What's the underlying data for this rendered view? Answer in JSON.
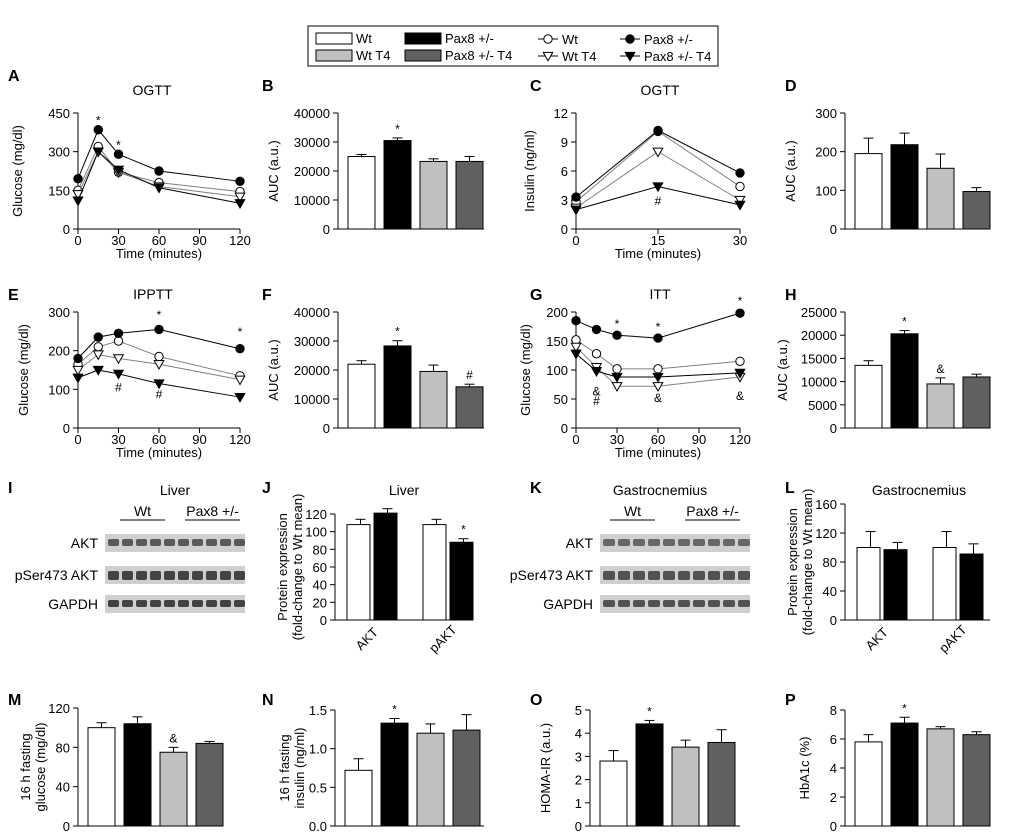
{
  "colors": {
    "wt": "#ffffff",
    "pax": "#000000",
    "wt_t4": "#c0c0c0",
    "pax_t4": "#606060",
    "stroke": "#000000",
    "open_marker": "#ffffff",
    "grey_line": "#808080"
  },
  "legend": {
    "bar_items": [
      {
        "label": "Wt",
        "color": "#ffffff"
      },
      {
        "label": "Pax8 +/-",
        "color": "#000000"
      },
      {
        "label": "Wt T4",
        "color": "#c0c0c0"
      },
      {
        "label": "Pax8 +/- T4",
        "color": "#606060"
      }
    ],
    "line_items": [
      {
        "label": "Wt",
        "marker": "open-circle"
      },
      {
        "label": "Pax8 +/-",
        "marker": "filled-circle"
      },
      {
        "label": "Wt T4",
        "marker": "open-triangle"
      },
      {
        "label": "Pax8 +/- T4",
        "marker": "filled-triangle"
      }
    ]
  },
  "chart_data": [
    {
      "panel": "A",
      "type": "line",
      "title": "OGTT",
      "xlabel": "Time (minutes)",
      "ylabel": "Glucose (mg/dl)",
      "x": [
        0,
        15,
        30,
        60,
        120
      ],
      "xlim": [
        0,
        120
      ],
      "ylim": [
        0,
        450
      ],
      "yticks": [
        "0",
        "150",
        "300",
        "450"
      ],
      "xticks": [
        "0",
        "30",
        "60",
        "90",
        "120"
      ],
      "series": [
        {
          "name": "Wt",
          "values": [
            150,
            320,
            220,
            180,
            145
          ]
        },
        {
          "name": "Pax8 +/-",
          "values": [
            195,
            385,
            290,
            225,
            185
          ]
        },
        {
          "name": "Wt T4",
          "values": [
            135,
            300,
            220,
            165,
            125
          ]
        },
        {
          "name": "Pax8 +/- T4",
          "values": [
            110,
            300,
            230,
            160,
            100
          ]
        }
      ],
      "annotations": [
        {
          "x": 15,
          "y": 405,
          "text": "*"
        },
        {
          "x": 30,
          "y": 310,
          "text": "*"
        }
      ]
    },
    {
      "panel": "B",
      "type": "bar",
      "ylabel": "AUC (a.u.)",
      "categories": [
        "Wt",
        "Pax8 +/-",
        "Wt T4",
        "Pax8 +/- T4"
      ],
      "values": [
        25000,
        30500,
        23300,
        23300
      ],
      "errors": [
        700,
        900,
        900,
        1700
      ],
      "ylim": [
        0,
        40000
      ],
      "yticks": [
        "0",
        "10000",
        "20000",
        "30000",
        "40000"
      ],
      "annotations": [
        {
          "index": 1,
          "text": "*"
        }
      ]
    },
    {
      "panel": "C",
      "type": "line",
      "title": "OGTT",
      "xlabel": "Time (minutes)",
      "ylabel": "Insulin (ng/ml)",
      "x": [
        0,
        15,
        30
      ],
      "xlim": [
        0,
        30
      ],
      "ylim": [
        0,
        12
      ],
      "yticks": [
        "0",
        "3",
        "6",
        "9",
        "12"
      ],
      "xticks": [
        "0",
        "15",
        "30"
      ],
      "series": [
        {
          "name": "Wt",
          "values": [
            2.8,
            10.1,
            4.4
          ]
        },
        {
          "name": "Pax8 +/-",
          "values": [
            3.3,
            10.2,
            5.8
          ]
        },
        {
          "name": "Wt T4",
          "values": [
            2.2,
            8.0,
            3.0
          ]
        },
        {
          "name": "Pax8 +/- T4",
          "values": [
            2.0,
            4.4,
            2.5
          ]
        }
      ],
      "annotations": [
        {
          "x": 15,
          "y": 2.5,
          "text": "#"
        }
      ]
    },
    {
      "panel": "D",
      "type": "bar",
      "ylabel": "AUC (a.u.)",
      "categories": [
        "Wt",
        "Pax8 +/-",
        "Wt T4",
        "Pax8 +/- T4"
      ],
      "values": [
        195,
        218,
        157,
        97
      ],
      "errors": [
        40,
        30,
        37,
        10
      ],
      "ylim": [
        0,
        300
      ],
      "yticks": [
        "0",
        "100",
        "200",
        "300"
      ]
    },
    {
      "panel": "E",
      "type": "line",
      "title": "IPPTT",
      "xlabel": "Time (minutes)",
      "ylabel": "Glucose (mg/dl)",
      "x": [
        0,
        15,
        30,
        60,
        120
      ],
      "xlim": [
        0,
        120
      ],
      "ylim": [
        0,
        300
      ],
      "yticks": [
        "0",
        "100",
        "200",
        "300"
      ],
      "xticks": [
        "0",
        "30",
        "60",
        "90",
        "120"
      ],
      "series": [
        {
          "name": "Wt",
          "values": [
            165,
            210,
            225,
            185,
            135
          ]
        },
        {
          "name": "Pax8 +/-",
          "values": [
            180,
            235,
            245,
            255,
            205
          ]
        },
        {
          "name": "Wt T4",
          "values": [
            150,
            190,
            180,
            165,
            125
          ]
        },
        {
          "name": "Pax8 +/- T4",
          "values": [
            130,
            150,
            140,
            115,
            80
          ]
        }
      ],
      "annotations": [
        {
          "x": 60,
          "y": 282,
          "text": "*"
        },
        {
          "x": 120,
          "y": 238,
          "text": "*"
        },
        {
          "x": 30,
          "y": 95,
          "text": "#"
        },
        {
          "x": 60,
          "y": 76,
          "text": "#"
        }
      ]
    },
    {
      "panel": "F",
      "type": "bar",
      "ylabel": "AUC (a.u.)",
      "categories": [
        "Wt",
        "Pax8 +/-",
        "Wt T4",
        "Pax8 +/- T4"
      ],
      "values": [
        22000,
        28300,
        19500,
        14200
      ],
      "errors": [
        1200,
        1800,
        2200,
        900
      ],
      "ylim": [
        0,
        40000
      ],
      "yticks": [
        "0",
        "10000",
        "20000",
        "30000",
        "40000"
      ],
      "annotations": [
        {
          "index": 1,
          "text": "*"
        },
        {
          "index": 3,
          "text": "#"
        }
      ]
    },
    {
      "panel": "G",
      "type": "line",
      "title": "ITT",
      "xlabel": "Time (minutes)",
      "ylabel": "Glucose (mg/dl)",
      "x": [
        0,
        15,
        30,
        60,
        120
      ],
      "xlim": [
        0,
        120
      ],
      "ylim": [
        0,
        200
      ],
      "yticks": [
        "0",
        "50",
        "100",
        "150",
        "200"
      ],
      "xticks": [
        "0",
        "30",
        "60",
        "90",
        "120"
      ],
      "series": [
        {
          "name": "Wt",
          "values": [
            152,
            128,
            102,
            102,
            115
          ]
        },
        {
          "name": "Pax8 +/-",
          "values": [
            185,
            170,
            160,
            155,
            198
          ]
        },
        {
          "name": "Wt T4",
          "values": [
            140,
            105,
            72,
            72,
            88
          ]
        },
        {
          "name": "Pax8 +/- T4",
          "values": [
            128,
            98,
            88,
            88,
            95
          ]
        }
      ],
      "annotations": [
        {
          "x": 30,
          "y": 172,
          "text": "*"
        },
        {
          "x": 60,
          "y": 167,
          "text": "*"
        },
        {
          "x": 120,
          "y": 212,
          "text": "*"
        },
        {
          "x": 15,
          "y": 56,
          "text": "&"
        },
        {
          "x": 15,
          "y": 40,
          "text": "#"
        },
        {
          "x": 60,
          "y": 45,
          "text": "&"
        },
        {
          "x": 120,
          "y": 48,
          "text": "&"
        }
      ]
    },
    {
      "panel": "H",
      "type": "bar",
      "ylabel": "AUC (a.u.)",
      "categories": [
        "Wt",
        "Pax8 +/-",
        "Wt T4",
        "Pax8 +/- T4"
      ],
      "values": [
        13500,
        20300,
        9500,
        11000
      ],
      "errors": [
        1000,
        700,
        1300,
        600
      ],
      "ylim": [
        0,
        25000
      ],
      "yticks": [
        "0",
        "5000",
        "10000",
        "15000",
        "20000",
        "25000"
      ],
      "annotations": [
        {
          "index": 1,
          "text": "*"
        },
        {
          "index": 2,
          "text": "&"
        }
      ]
    },
    {
      "panel": "J",
      "type": "bar",
      "title": "Liver",
      "ylabel": "Protein expression (fold-change to Wt mean)",
      "categories": [
        "AKT",
        "pAKT"
      ],
      "series": [
        {
          "name": "Wt",
          "values": [
            108,
            108
          ]
        },
        {
          "name": "Pax8 +/-",
          "values": [
            121,
            88
          ]
        }
      ],
      "errors": [
        [
          6,
          6
        ],
        [
          5,
          4
        ]
      ],
      "ylim": [
        0,
        120
      ],
      "yticks": [
        "0",
        "20",
        "40",
        "60",
        "80",
        "100",
        "120"
      ],
      "annotations": [
        {
          "group": 1,
          "series": 1,
          "text": "*"
        }
      ]
    },
    {
      "panel": "L",
      "type": "bar",
      "title": "Gastrocnemius",
      "ylabel": "Protein expression (fold-change to Wt mean)",
      "categories": [
        "AKT",
        "pAKT"
      ],
      "series": [
        {
          "name": "Wt",
          "values": [
            100,
            100
          ]
        },
        {
          "name": "Pax8 +/-",
          "values": [
            97,
            91
          ]
        }
      ],
      "errors": [
        [
          22,
          22
        ],
        [
          10,
          14
        ]
      ],
      "ylim": [
        0,
        160
      ],
      "yticks": [
        "0",
        "40",
        "80",
        "120",
        "160"
      ]
    },
    {
      "panel": "M",
      "type": "bar",
      "ylabel": "16 h fasting glucose (mg/dl)",
      "categories": [
        "Wt",
        "Pax8 +/-",
        "Wt T4",
        "Pax8 +/- T4"
      ],
      "values": [
        100,
        104,
        75,
        84
      ],
      "errors": [
        5,
        7,
        5,
        2
      ],
      "ylim": [
        0,
        120
      ],
      "yticks": [
        "0",
        "40",
        "80",
        "120"
      ],
      "annotations": [
        {
          "index": 2,
          "text": "&"
        }
      ]
    },
    {
      "panel": "N",
      "type": "bar",
      "ylabel": "16 h fasting insulin (ng/ml)",
      "categories": [
        "Wt",
        "Pax8 +/-",
        "Wt T4",
        "Pax8 +/- T4"
      ],
      "values": [
        0.72,
        1.33,
        1.2,
        1.24
      ],
      "errors": [
        0.15,
        0.06,
        0.12,
        0.2
      ],
      "ylim": [
        0,
        1.5
      ],
      "yticks": [
        "0.0",
        "0.5",
        "1.0",
        "1.5"
      ],
      "annotations": [
        {
          "index": 1,
          "text": "*"
        }
      ]
    },
    {
      "panel": "O",
      "type": "bar",
      "ylabel": "HOMA-IR (a.u.)",
      "categories": [
        "Wt",
        "Pax8 +/-",
        "Wt T4",
        "Pax8 +/- T4"
      ],
      "values": [
        2.8,
        4.4,
        3.4,
        3.6
      ],
      "errors": [
        0.45,
        0.15,
        0.3,
        0.55
      ],
      "ylim": [
        0,
        5
      ],
      "yticks": [
        "0",
        "1",
        "2",
        "3",
        "4",
        "5"
      ],
      "annotations": [
        {
          "index": 1,
          "text": "*"
        }
      ]
    },
    {
      "panel": "P",
      "type": "bar",
      "ylabel": "HbA1c (%)",
      "categories": [
        "Wt",
        "Pax8 +/-",
        "Wt T4",
        "Pax8 +/- T4"
      ],
      "values": [
        5.8,
        7.1,
        6.7,
        6.3
      ],
      "errors": [
        0.5,
        0.4,
        0.15,
        0.2
      ],
      "ylim": [
        0,
        8
      ],
      "yticks": [
        "0",
        "2",
        "4",
        "6",
        "8"
      ],
      "annotations": [
        {
          "index": 1,
          "text": "*"
        }
      ]
    }
  ],
  "blots": [
    {
      "panel": "I",
      "title": "Liver",
      "groups": [
        "Wt",
        "Pax8 +/-"
      ],
      "rows": [
        "AKT",
        "pSer473 AKT",
        "GAPDH"
      ]
    },
    {
      "panel": "K",
      "title": "Gastrocnemius",
      "groups": [
        "Wt",
        "Pax8 +/-"
      ],
      "rows": [
        "AKT",
        "pSer473 AKT",
        "GAPDH"
      ]
    }
  ]
}
